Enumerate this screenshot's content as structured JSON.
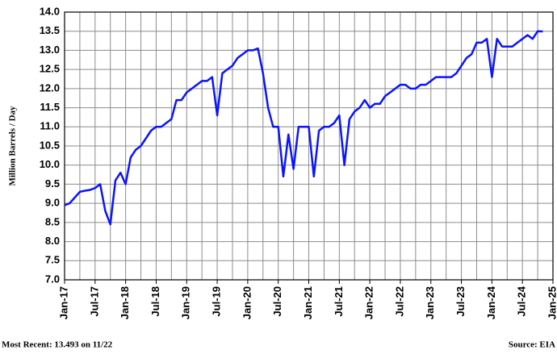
{
  "chart_data": {
    "type": "line",
    "y_label": "Million Barrels / Day",
    "footnote": "Most Recent: 13.493 on 11/22",
    "source": "Source: EIA",
    "categories": [
      "Jan-17",
      null,
      null,
      null,
      null,
      null,
      "Jul-17",
      null,
      null,
      null,
      null,
      null,
      "Jan-18",
      null,
      null,
      null,
      null,
      null,
      "Jul-18",
      null,
      null,
      null,
      null,
      null,
      "Jan-19",
      null,
      null,
      null,
      null,
      null,
      "Jul-19",
      null,
      null,
      null,
      null,
      null,
      "Jan-20",
      null,
      null,
      null,
      null,
      null,
      "Jul-20",
      null,
      null,
      null,
      null,
      null,
      "Jan-21",
      null,
      null,
      null,
      null,
      null,
      "Jul-21",
      null,
      null,
      null,
      null,
      null,
      "Jan-22",
      null,
      null,
      null,
      null,
      null,
      "Jul-22",
      null,
      null,
      null,
      null,
      null,
      "Jan-23",
      null,
      null,
      null,
      null,
      null,
      "Jul-23",
      null,
      null,
      null,
      null,
      null,
      "Jan-24",
      null,
      null,
      null,
      null,
      null,
      "Jul-24",
      null,
      null,
      null,
      null,
      null,
      "Jan-25"
    ],
    "series": [
      {
        "color": "#0a14ff",
        "values": [
          8.95,
          9.0,
          9.15,
          9.3,
          9.33,
          9.35,
          9.4,
          9.5,
          8.8,
          8.45,
          9.6,
          9.8,
          9.5,
          10.2,
          10.4,
          10.5,
          10.7,
          10.9,
          11.0,
          11.0,
          11.1,
          11.2,
          11.7,
          11.7,
          11.9,
          12.0,
          12.1,
          12.2,
          12.2,
          12.3,
          11.3,
          12.4,
          12.5,
          12.6,
          12.8,
          12.9,
          13.0,
          13.0,
          13.05,
          12.4,
          11.5,
          11.0,
          11.0,
          9.7,
          10.8,
          9.9,
          11.0,
          11.0,
          11.0,
          9.7,
          10.9,
          11.0,
          11.0,
          11.1,
          11.3,
          10.0,
          11.2,
          11.4,
          11.5,
          11.7,
          11.5,
          11.6,
          11.6,
          11.8,
          11.9,
          12.0,
          12.1,
          12.1,
          12.0,
          12.0,
          12.1,
          12.1,
          12.2,
          12.3,
          12.3,
          12.3,
          12.3,
          12.4,
          12.6,
          12.8,
          12.9,
          13.2,
          13.2,
          13.3,
          12.3,
          13.3,
          13.1,
          13.1,
          13.1,
          13.2,
          13.3,
          13.4,
          13.3,
          13.5,
          13.493,
          null,
          null
        ]
      }
    ],
    "ylim": [
      7,
      14
    ],
    "yticks": [
      {
        "value": 7,
        "label": "7.0"
      },
      {
        "value": 7.5,
        "label": "7.5"
      },
      {
        "value": 8,
        "label": "8.0"
      },
      {
        "value": 8.5,
        "label": "8.5"
      },
      {
        "value": 9,
        "label": "9.0"
      },
      {
        "value": 9.5,
        "label": "9.5"
      },
      {
        "value": 10,
        "label": "10.0"
      },
      {
        "value": 10.5,
        "label": "10.5"
      },
      {
        "value": 11,
        "label": "11.0"
      },
      {
        "value": 11.5,
        "label": "11.5"
      },
      {
        "value": 12,
        "label": "12.0"
      },
      {
        "value": 12.5,
        "label": "12.5"
      },
      {
        "value": 13,
        "label": "13.0"
      },
      {
        "value": 13.5,
        "label": "13.5"
      },
      {
        "value": 14,
        "label": "14.0"
      }
    ],
    "grid": true
  }
}
